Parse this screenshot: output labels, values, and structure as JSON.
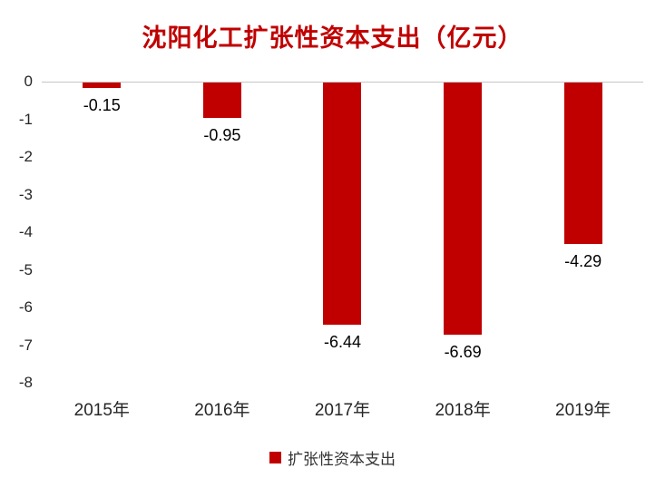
{
  "chart_data": {
    "type": "bar",
    "title": "沈阳化工扩张性资本支出（亿元）",
    "categories": [
      "2015年",
      "2016年",
      "2017年",
      "2018年",
      "2019年"
    ],
    "values": [
      -0.15,
      -0.95,
      -6.44,
      -6.69,
      -4.29
    ],
    "value_labels": [
      "-0.15",
      "-0.95",
      "-6.44",
      "-6.69",
      "-4.29"
    ],
    "series_name": "扩张性资本支出",
    "xlabel": "",
    "ylabel": "",
    "ylim": [
      -8,
      0
    ],
    "yticks": [
      0,
      -1,
      -2,
      -3,
      -4,
      -5,
      -6,
      -7,
      -8
    ],
    "grid": "off",
    "bar_color": "#c00000",
    "title_color": "#c00000",
    "legend": {
      "label": "扩张性资本支出",
      "position": "bottom",
      "swatch_color": "#c00000"
    }
  }
}
